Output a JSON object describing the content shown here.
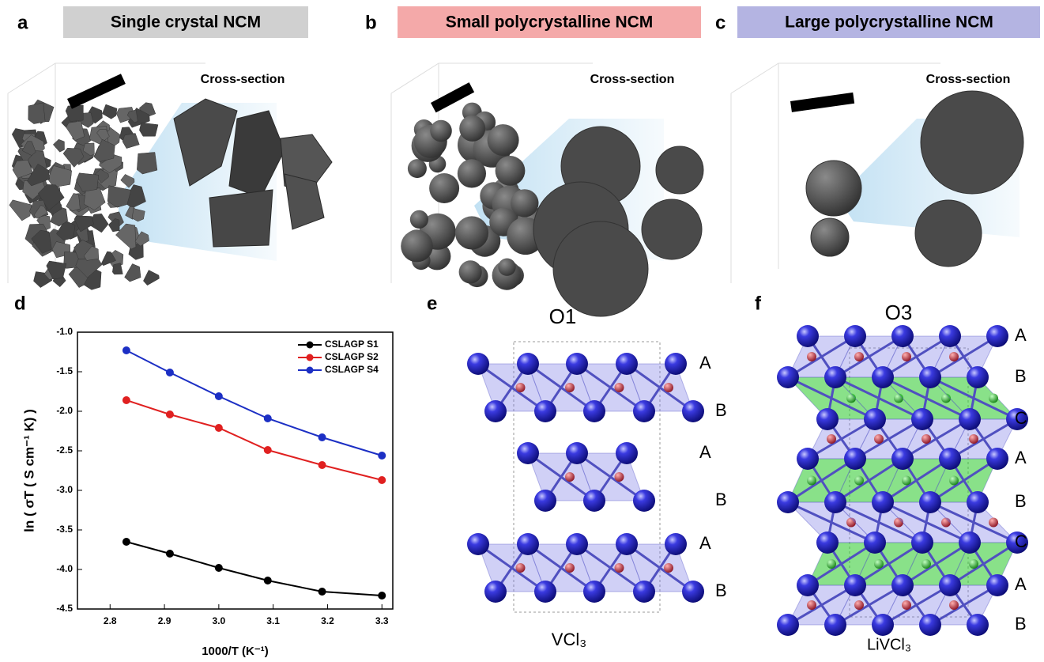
{
  "panels": [
    {
      "letter": "a",
      "title": "Single crystal NCM",
      "label": "Cross-section"
    },
    {
      "letter": "b",
      "title": "Small polycrystalline NCM",
      "label": "Cross-section"
    },
    {
      "letter": "c",
      "title": "Large polycrystalline NCM",
      "label": "Cross-section"
    },
    {
      "letter": "d"
    },
    {
      "letter": "e",
      "title": "O1",
      "layers": [
        "A",
        "B",
        "A",
        "B",
        "A",
        "B"
      ],
      "formula": "VCl₃"
    },
    {
      "letter": "f",
      "title": "O3",
      "layers": [
        "A",
        "B",
        "C",
        "A",
        "B",
        "C",
        "A",
        "B"
      ],
      "formula": "LiVCl₃"
    }
  ],
  "chart_data": {
    "type": "line",
    "x": [
      2.83,
      2.91,
      3.0,
      3.09,
      3.19,
      3.3
    ],
    "series": [
      {
        "name": "CSLAGP S1",
        "color": "#000000",
        "values": [
          -3.65,
          -3.8,
          -3.98,
          -4.14,
          -4.28,
          -4.33
        ]
      },
      {
        "name": "CSLAGP S2",
        "color": "#e02020",
        "values": [
          -1.86,
          -2.04,
          -2.21,
          -2.49,
          -2.68,
          -2.87
        ]
      },
      {
        "name": "CSLAGP S4",
        "color": "#1c2fc4",
        "values": [
          -1.23,
          -1.51,
          -1.81,
          -2.09,
          -2.33,
          -2.56
        ]
      }
    ],
    "xlabel": "1000/T (K⁻¹)",
    "ylabel": "ln ( σT ( S cm⁻¹ K) )",
    "xlim": [
      2.74,
      3.32
    ],
    "ylim": [
      -4.5,
      -1.0
    ],
    "xticks": [
      2.8,
      2.9,
      {
        "value": 3.0,
        "label": "3.0"
      },
      3.1,
      3.2,
      3.3
    ],
    "yticks": [
      {
        "value": -1.0,
        "label": "-1.0"
      },
      -1.5,
      {
        "value": -2.0,
        "label": "-2.0"
      },
      -2.5,
      {
        "value": -3.0,
        "label": "-3.0"
      },
      -3.5,
      {
        "value": -4.0,
        "label": "-4.0"
      },
      -4.5
    ],
    "legend": "upper right"
  }
}
